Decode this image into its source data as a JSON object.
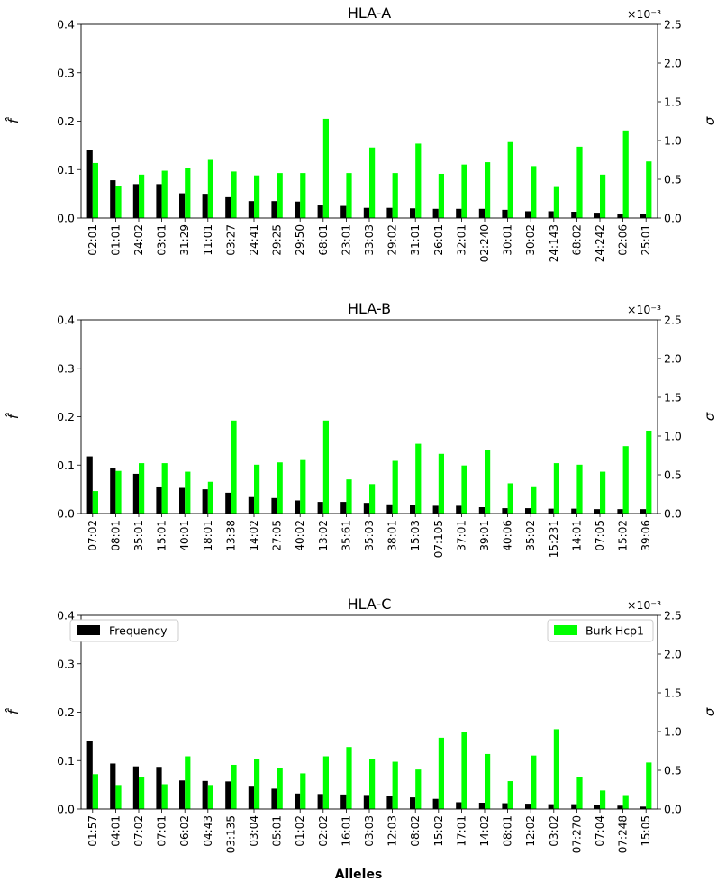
{
  "figure": {
    "xlabel": "Alleles",
    "left_ylabel": "f̂",
    "right_ylabel": "σ",
    "right_multiplier": "×10⁻³"
  },
  "legend": {
    "frequency": "Frequency",
    "burk": "Burk Hcp1"
  },
  "colors": {
    "frequency": "#000000",
    "burk": "#00ff00"
  },
  "chart_data": [
    {
      "type": "bar",
      "title": "HLA-A",
      "categories": [
        "02:01",
        "01:01",
        "24:02",
        "03:01",
        "31:29",
        "11:01",
        "03:27",
        "24:41",
        "29:25",
        "29:50",
        "68:01",
        "23:01",
        "33:03",
        "29:02",
        "31:01",
        "26:01",
        "32:01",
        "02:240",
        "30:01",
        "30:02",
        "24:143",
        "68:02",
        "24:242",
        "02:06",
        "25:01"
      ],
      "series": [
        {
          "name": "Frequency",
          "axis": "left",
          "values": [
            0.14,
            0.078,
            0.07,
            0.07,
            0.051,
            0.05,
            0.043,
            0.035,
            0.035,
            0.034,
            0.026,
            0.025,
            0.021,
            0.021,
            0.02,
            0.019,
            0.019,
            0.019,
            0.017,
            0.014,
            0.014,
            0.013,
            0.011,
            0.009,
            0.008
          ]
        },
        {
          "name": "Burk Hcp1",
          "axis": "right",
          "values": [
            0.71,
            0.41,
            0.56,
            0.61,
            0.65,
            0.75,
            0.6,
            0.55,
            0.58,
            0.58,
            1.28,
            0.58,
            0.91,
            0.58,
            0.96,
            0.57,
            0.69,
            0.72,
            0.98,
            0.67,
            0.4,
            0.92,
            0.56,
            1.13,
            0.73
          ]
        }
      ],
      "ylim_left": [
        0,
        0.4
      ],
      "ylim_right": [
        0,
        2.5
      ],
      "yticks_left": [
        "0.0",
        "0.1",
        "0.2",
        "0.3",
        "0.4"
      ],
      "yticks_right": [
        "0.0",
        "0.5",
        "1.0",
        "1.5",
        "2.0",
        "2.5"
      ],
      "legend": false
    },
    {
      "type": "bar",
      "title": "HLA-B",
      "categories": [
        "07:02",
        "08:01",
        "35:01",
        "15:01",
        "40:01",
        "18:01",
        "13:38",
        "14:02",
        "27:05",
        "40:02",
        "13:02",
        "35:61",
        "35:03",
        "38:01",
        "15:03",
        "07:105",
        "37:01",
        "39:01",
        "40:06",
        "35:02",
        "15:231",
        "14:01",
        "07:05",
        "15:02",
        "39:06"
      ],
      "series": [
        {
          "name": "Frequency",
          "axis": "left",
          "values": [
            0.118,
            0.093,
            0.082,
            0.054,
            0.053,
            0.05,
            0.043,
            0.034,
            0.032,
            0.027,
            0.024,
            0.024,
            0.022,
            0.019,
            0.018,
            0.016,
            0.016,
            0.013,
            0.011,
            0.011,
            0.01,
            0.01,
            0.009,
            0.009,
            0.009
          ]
        },
        {
          "name": "Burk Hcp1",
          "axis": "right",
          "values": [
            0.29,
            0.55,
            0.65,
            0.65,
            0.54,
            0.41,
            1.2,
            0.63,
            0.66,
            0.69,
            1.2,
            0.44,
            0.38,
            0.68,
            0.9,
            0.77,
            0.62,
            0.82,
            0.39,
            0.34,
            0.65,
            0.63,
            0.54,
            0.87,
            1.07
          ]
        }
      ],
      "ylim_left": [
        0,
        0.4
      ],
      "ylim_right": [
        0,
        2.5
      ],
      "yticks_left": [
        "0.0",
        "0.1",
        "0.2",
        "0.3",
        "0.4"
      ],
      "yticks_right": [
        "0.0",
        "0.5",
        "1.0",
        "1.5",
        "2.0",
        "2.5"
      ],
      "legend": false
    },
    {
      "type": "bar",
      "title": "HLA-C",
      "categories": [
        "01:57",
        "04:01",
        "07:02",
        "07:01",
        "06:02",
        "04:43",
        "03:135",
        "03:04",
        "05:01",
        "01:02",
        "02:02",
        "16:01",
        "03:03",
        "12:03",
        "08:02",
        "15:02",
        "17:01",
        "14:02",
        "08:01",
        "12:02",
        "03:02",
        "07:270",
        "07:04",
        "07:248",
        "15:05"
      ],
      "series": [
        {
          "name": "Frequency",
          "axis": "left",
          "values": [
            0.141,
            0.094,
            0.088,
            0.087,
            0.059,
            0.058,
            0.057,
            0.048,
            0.042,
            0.032,
            0.031,
            0.03,
            0.029,
            0.027,
            0.024,
            0.021,
            0.014,
            0.013,
            0.012,
            0.011,
            0.01,
            0.01,
            0.008,
            0.007,
            0.005
          ]
        },
        {
          "name": "Burk Hcp1",
          "axis": "right",
          "values": [
            0.45,
            0.31,
            0.41,
            0.32,
            0.68,
            0.31,
            0.57,
            0.64,
            0.53,
            0.46,
            0.68,
            0.8,
            0.65,
            0.61,
            0.51,
            0.92,
            0.99,
            0.71,
            0.36,
            0.69,
            1.03,
            0.41,
            0.24,
            0.18,
            0.6
          ]
        }
      ],
      "ylim_left": [
        0,
        0.4
      ],
      "ylim_right": [
        0,
        2.5
      ],
      "yticks_left": [
        "0.0",
        "0.1",
        "0.2",
        "0.3",
        "0.4"
      ],
      "yticks_right": [
        "0.0",
        "0.5",
        "1.0",
        "1.5",
        "2.0",
        "2.5"
      ],
      "legend": true
    }
  ]
}
